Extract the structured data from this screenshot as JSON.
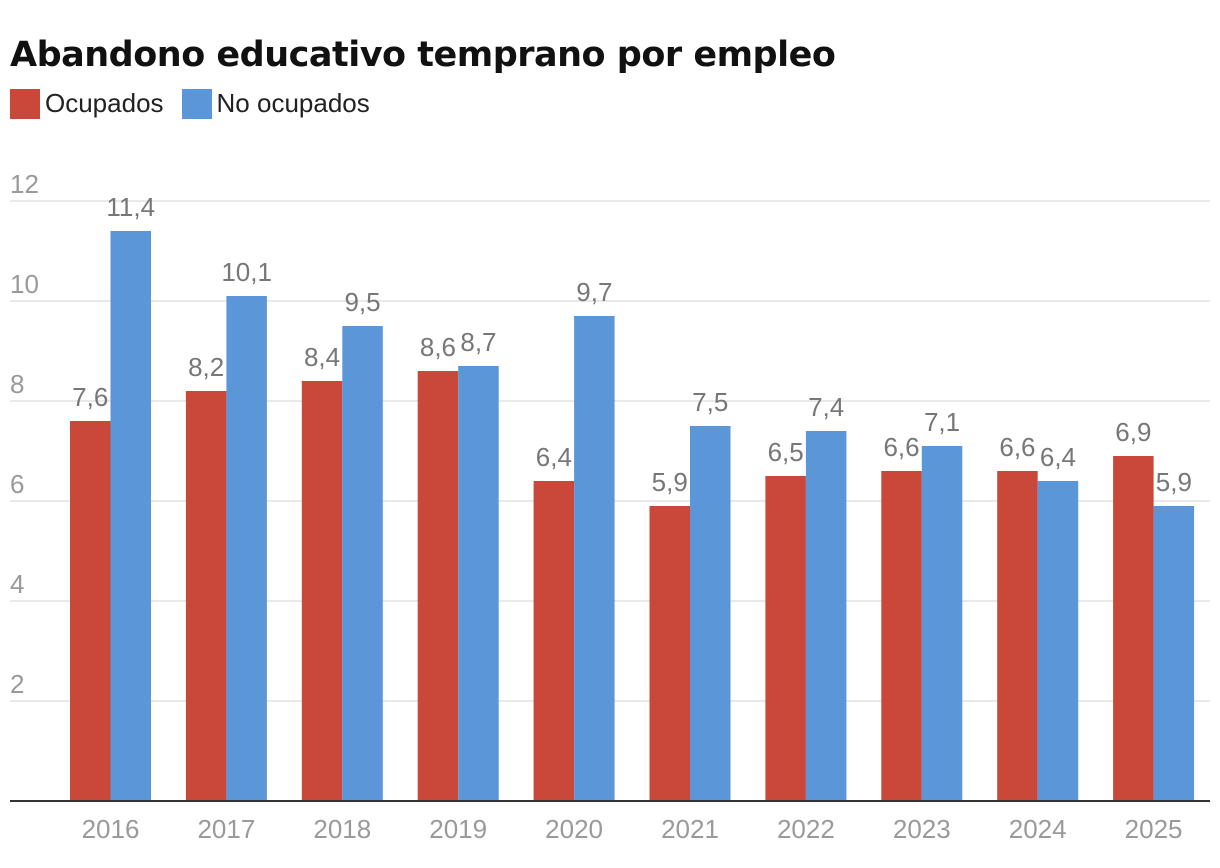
{
  "chart_data": {
    "type": "bar",
    "title": "Abandono educativo temprano por empleo",
    "categories": [
      "2016",
      "2017",
      "2018",
      "2019",
      "2020",
      "2021",
      "2022",
      "2023",
      "2024",
      "2025"
    ],
    "series": [
      {
        "name": "Ocupados",
        "color": "#c9483a",
        "values": [
          7.6,
          8.2,
          8.4,
          8.6,
          6.4,
          5.9,
          6.5,
          6.6,
          6.6,
          6.9
        ],
        "labels": [
          "7,6",
          "8,2",
          "8,4",
          "8,6",
          "6,4",
          "5,9",
          "6,5",
          "6,6",
          "6,6",
          "6,9"
        ]
      },
      {
        "name": "No ocupados",
        "color": "#5b96d9",
        "values": [
          11.4,
          10.1,
          9.5,
          8.7,
          9.7,
          7.5,
          7.4,
          7.1,
          6.4,
          5.9
        ],
        "labels": [
          "11,4",
          "10,1",
          "9,5",
          "8,7",
          "9,7",
          "7,5",
          "7,4",
          "7,1",
          "6,4",
          "5,9"
        ]
      }
    ],
    "y_ticks": [
      2,
      4,
      6,
      8,
      10,
      12
    ],
    "ylim": [
      0,
      12
    ],
    "grid": true,
    "legend_position": "top-left"
  }
}
